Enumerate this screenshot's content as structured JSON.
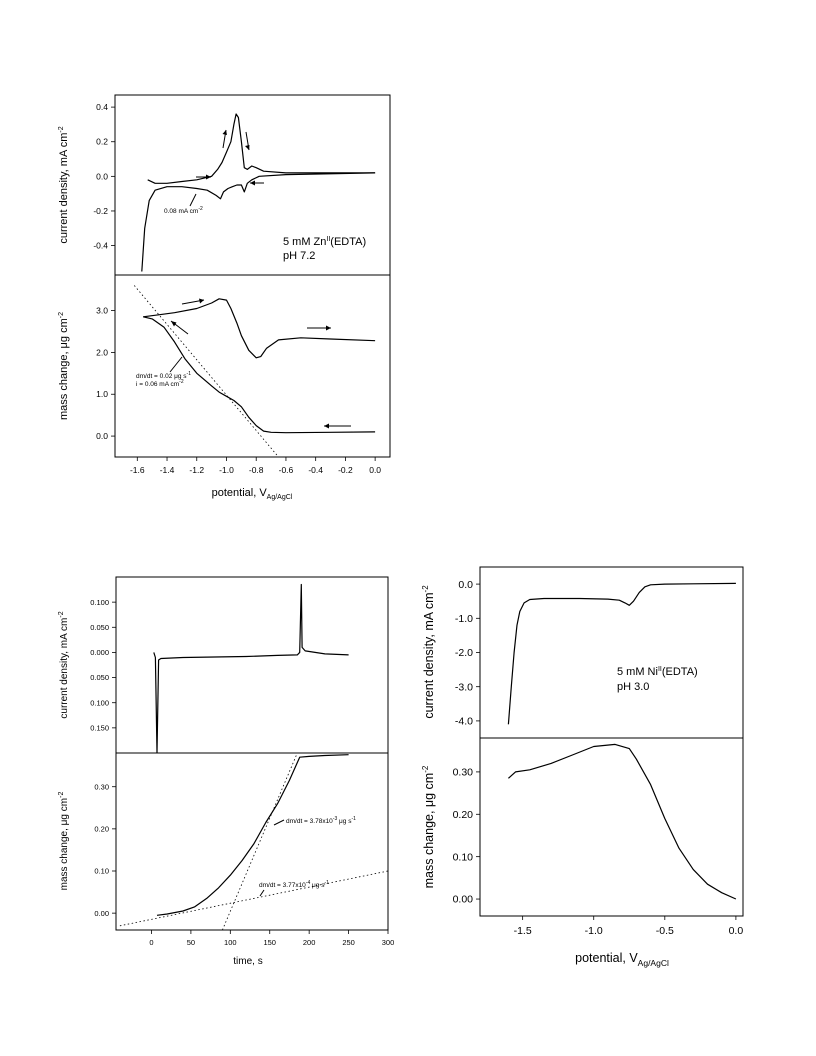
{
  "chart_data": [
    {
      "id": "zn",
      "type": "line",
      "x_axis": {
        "label": "potential, V",
        "label_sub": "Ag/AgCl",
        "range": [
          -1.75,
          0.1
        ],
        "ticks": [
          "-1.6",
          "-1.4",
          "-1.2",
          "-1.0",
          "-0.8",
          "-0.6",
          "-0.4",
          "-0.2",
          "0.0"
        ]
      },
      "top": {
        "ylabel": "current density, mA cm",
        "ylabel_sup": "-2",
        "range": [
          -0.57,
          0.47
        ],
        "ticks": [
          "0.4",
          "0.2",
          "0.0",
          "-0.2",
          "-0.4"
        ],
        "annotations": [
          "5 mM Zn",
          "II",
          "(EDTA)",
          "pH 7.2",
          "0.08 mA cm",
          "-2"
        ],
        "series": [
          {
            "points": [
              [
                -1.57,
                -0.55
              ],
              [
                -1.55,
                -0.3
              ],
              [
                -1.52,
                -0.14
              ],
              [
                -1.48,
                -0.08
              ],
              [
                -1.4,
                -0.06
              ],
              [
                -1.3,
                -0.06
              ],
              [
                -1.2,
                -0.07
              ],
              [
                -1.13,
                -0.08
              ],
              [
                -1.07,
                -0.11
              ],
              [
                -1.04,
                -0.13
              ],
              [
                -1.02,
                -0.09
              ],
              [
                -0.99,
                -0.07
              ],
              [
                -0.96,
                -0.06
              ],
              [
                -0.93,
                -0.05
              ],
              [
                -0.9,
                -0.05
              ],
              [
                -0.88,
                -0.09
              ],
              [
                -0.86,
                -0.04
              ],
              [
                -0.83,
                -0.02
              ],
              [
                -0.78,
                0.0
              ],
              [
                -0.6,
                0.01
              ],
              [
                -0.3,
                0.015
              ],
              [
                0.0,
                0.02
              ]
            ]
          },
          {
            "points": [
              [
                0.0,
                0.02
              ],
              [
                -0.3,
                0.02
              ],
              [
                -0.6,
                0.02
              ],
              [
                -0.75,
                0.03
              ],
              [
                -0.8,
                0.05
              ],
              [
                -0.83,
                0.06
              ],
              [
                -0.86,
                0.04
              ],
              [
                -0.88,
                0.05
              ],
              [
                -0.9,
                0.2
              ],
              [
                -0.92,
                0.34
              ],
              [
                -0.935,
                0.36
              ],
              [
                -0.95,
                0.3
              ],
              [
                -0.97,
                0.2
              ],
              [
                -1.0,
                0.14
              ],
              [
                -1.03,
                0.08
              ],
              [
                -1.06,
                0.04
              ],
              [
                -1.1,
                0.0
              ],
              [
                -1.2,
                -0.02
              ],
              [
                -1.3,
                -0.03
              ],
              [
                -1.4,
                -0.04
              ],
              [
                -1.48,
                -0.04
              ],
              [
                -1.53,
                -0.02
              ]
            ]
          }
        ]
      },
      "bottom": {
        "ylabel": "mass change, μg cm",
        "ylabel_sup": "-2",
        "range": [
          -0.5,
          3.85
        ],
        "ticks": [
          "3.0",
          "2.0",
          "1.0",
          "0.0"
        ],
        "annotations": [
          "dm/dt = 0.02 μg s",
          "-1",
          "i = 0.06 mA cm",
          "-2"
        ],
        "series": [
          {
            "points": [
              [
                0.0,
                0.1
              ],
              [
                -0.3,
                0.09
              ],
              [
                -0.6,
                0.08
              ],
              [
                -0.7,
                0.09
              ],
              [
                -0.75,
                0.12
              ],
              [
                -0.8,
                0.25
              ],
              [
                -0.85,
                0.45
              ],
              [
                -0.9,
                0.7
              ],
              [
                -0.95,
                0.85
              ],
              [
                -1.0,
                0.95
              ],
              [
                -1.05,
                1.05
              ],
              [
                -1.1,
                1.2
              ],
              [
                -1.2,
                1.5
              ],
              [
                -1.28,
                1.85
              ],
              [
                -1.35,
                2.25
              ],
              [
                -1.42,
                2.6
              ],
              [
                -1.5,
                2.8
              ],
              [
                -1.56,
                2.85
              ]
            ]
          },
          {
            "points": [
              [
                -1.56,
                2.85
              ],
              [
                -1.45,
                2.9
              ],
              [
                -1.35,
                2.95
              ],
              [
                -1.2,
                3.05
              ],
              [
                -1.1,
                3.18
              ],
              [
                -1.05,
                3.28
              ],
              [
                -1.0,
                3.25
              ],
              [
                -0.97,
                3.05
              ],
              [
                -0.93,
                2.7
              ],
              [
                -0.9,
                2.4
              ],
              [
                -0.85,
                2.05
              ],
              [
                -0.8,
                1.87
              ],
              [
                -0.77,
                1.9
              ],
              [
                -0.73,
                2.1
              ],
              [
                -0.65,
                2.3
              ],
              [
                -0.5,
                2.35
              ],
              [
                -0.3,
                2.32
              ],
              [
                0.0,
                2.28
              ]
            ]
          }
        ],
        "fit_line": [
          [
            -1.62,
            3.6
          ],
          [
            -0.65,
            -0.5
          ]
        ]
      }
    },
    {
      "id": "time",
      "type": "line",
      "x_axis": {
        "label": "time, s",
        "range": [
          -45,
          300
        ],
        "ticks": [
          "0",
          "50",
          "100",
          "150",
          "200",
          "250",
          "300"
        ]
      },
      "top": {
        "ylabel": "current density, mA cm",
        "ylabel_sup": "-2",
        "range": [
          -0.2,
          0.15
        ],
        "ticks": [
          "0.100",
          "0.050",
          "0.000",
          "0.050",
          "0.100",
          "0.150"
        ],
        "series": [
          {
            "points": [
              [
                3,
                0.0
              ],
              [
                5,
                -0.01
              ],
              [
                7,
                -0.2
              ],
              [
                9,
                -0.015
              ],
              [
                12,
                -0.012
              ],
              [
                40,
                -0.01
              ],
              [
                80,
                -0.009
              ],
              [
                120,
                -0.008
              ],
              [
                160,
                -0.006
              ],
              [
                185,
                -0.005
              ],
              [
                188,
                0.0
              ],
              [
                190,
                0.135
              ],
              [
                191,
                0.01
              ],
              [
                195,
                0.003
              ],
              [
                220,
                -0.003
              ],
              [
                250,
                -0.005
              ]
            ]
          }
        ]
      },
      "bottom": {
        "ylabel": "mass change, μg cm",
        "ylabel_sup": "-2",
        "range": [
          -0.04,
          0.38
        ],
        "ticks": [
          "0.30",
          "0.20",
          "0.10",
          "0.00"
        ],
        "annotations": [
          "dm/dt = 3.78x10",
          "-3",
          " μg s",
          "-1",
          "dm/dt = 3.77x10",
          "-4",
          " μg s",
          "-1"
        ],
        "series": [
          {
            "points": [
              [
                7,
                -0.005
              ],
              [
                20,
                -0.002
              ],
              [
                40,
                0.005
              ],
              [
                55,
                0.015
              ],
              [
                70,
                0.035
              ],
              [
                85,
                0.06
              ],
              [
                100,
                0.09
              ],
              [
                115,
                0.125
              ],
              [
                130,
                0.165
              ],
              [
                145,
                0.215
              ],
              [
                160,
                0.26
              ],
              [
                175,
                0.315
              ],
              [
                188,
                0.37
              ],
              [
                200,
                0.372
              ],
              [
                220,
                0.374
              ],
              [
                250,
                0.376
              ]
            ]
          }
        ],
        "fit_lines": [
          [
            [
              -40,
              -0.03
            ],
            [
              300,
              0.1
            ]
          ],
          [
            [
              90,
              -0.04
            ],
            [
              185,
              0.38
            ]
          ]
        ]
      }
    },
    {
      "id": "ni",
      "type": "line",
      "x_axis": {
        "label": "potential, V",
        "label_sub": "Ag/AgCl",
        "range": [
          -1.8,
          0.05
        ],
        "ticks": [
          "-1.5",
          "-1.0",
          "-0.5",
          "0.0"
        ]
      },
      "top": {
        "ylabel": "current density, mA cm",
        "ylabel_sup": "-2",
        "range": [
          -4.5,
          0.5
        ],
        "ticks": [
          "0.0",
          "-1.0",
          "-2.0",
          "-3.0",
          "-4.0"
        ],
        "annotations": [
          "5 mM Ni",
          "II",
          "(EDTA)",
          "pH 3.0"
        ],
        "series": [
          {
            "points": [
              [
                -1.6,
                -4.1
              ],
              [
                -1.58,
                -3.0
              ],
              [
                -1.56,
                -2.0
              ],
              [
                -1.54,
                -1.2
              ],
              [
                -1.52,
                -0.8
              ],
              [
                -1.49,
                -0.55
              ],
              [
                -1.45,
                -0.45
              ],
              [
                -1.35,
                -0.42
              ],
              [
                -1.1,
                -0.42
              ],
              [
                -0.9,
                -0.44
              ],
              [
                -0.82,
                -0.47
              ],
              [
                -0.78,
                -0.55
              ],
              [
                -0.75,
                -0.62
              ],
              [
                -0.72,
                -0.5
              ],
              [
                -0.68,
                -0.25
              ],
              [
                -0.64,
                -0.08
              ],
              [
                -0.6,
                -0.02
              ],
              [
                -0.5,
                0.0
              ],
              [
                -0.3,
                0.01
              ],
              [
                0.0,
                0.02
              ]
            ]
          }
        ]
      },
      "bottom": {
        "ylabel": "mass change, μg cm",
        "ylabel_sup": "-2",
        "range": [
          -0.04,
          0.38
        ],
        "ticks": [
          "0.30",
          "0.20",
          "0.10",
          "0.00"
        ],
        "series": [
          {
            "points": [
              [
                -1.6,
                0.285
              ],
              [
                -1.55,
                0.3
              ],
              [
                -1.45,
                0.305
              ],
              [
                -1.3,
                0.32
              ],
              [
                -1.15,
                0.34
              ],
              [
                -1.0,
                0.36
              ],
              [
                -0.85,
                0.365
              ],
              [
                -0.75,
                0.355
              ],
              [
                -0.7,
                0.33
              ],
              [
                -0.6,
                0.27
              ],
              [
                -0.5,
                0.19
              ],
              [
                -0.4,
                0.12
              ],
              [
                -0.3,
                0.07
              ],
              [
                -0.2,
                0.035
              ],
              [
                -0.1,
                0.015
              ],
              [
                0.0,
                0.0
              ]
            ]
          }
        ]
      }
    }
  ]
}
